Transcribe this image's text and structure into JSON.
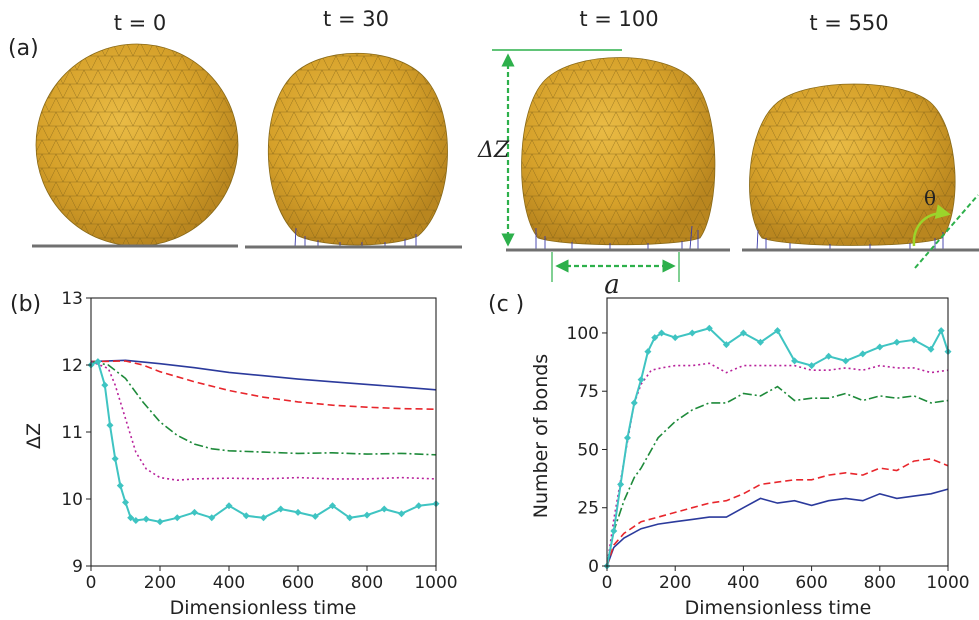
{
  "panel_a": {
    "label": "(a)",
    "frames": [
      {
        "title": "t = 0"
      },
      {
        "title": "t = 30"
      },
      {
        "title": "t = 100"
      },
      {
        "title": "t = 550"
      }
    ],
    "annotations": {
      "height": "ΔZ",
      "contact": "a",
      "angle": "θ"
    },
    "colors": {
      "vesicle": "#d9a52c",
      "bonds": "#3a3aa8",
      "annotation": "#2db04b",
      "angle_arrow": "#9bd52b",
      "substrate": "#707070"
    }
  },
  "chart_data": [
    {
      "type": "line",
      "panel_label": "(b)",
      "xlabel": "Dimensionless time",
      "ylabel": "ΔZ",
      "title": "",
      "xlim": [
        0,
        1000
      ],
      "ylim": [
        9,
        13
      ],
      "xticks": [
        0,
        200,
        400,
        600,
        800,
        1000
      ],
      "yticks": [
        9,
        10,
        11,
        12,
        13
      ],
      "grid": false,
      "legend": "none",
      "series": [
        {
          "color": "#2b3a9c",
          "style": "solid",
          "x": [
            0,
            100,
            200,
            300,
            400,
            500,
            600,
            700,
            800,
            900,
            1000
          ],
          "y": [
            12.05,
            12.07,
            12.02,
            11.96,
            11.89,
            11.84,
            11.79,
            11.75,
            11.71,
            11.67,
            11.63
          ]
        },
        {
          "color": "#e8262c",
          "style": "dashed",
          "x": [
            0,
            100,
            150,
            200,
            300,
            400,
            500,
            600,
            700,
            800,
            900,
            1000
          ],
          "y": [
            12.05,
            12.06,
            12.0,
            11.9,
            11.75,
            11.62,
            11.52,
            11.45,
            11.4,
            11.37,
            11.35,
            11.34
          ]
        },
        {
          "color": "#1e8a3a",
          "style": "dashdot",
          "x": [
            0,
            50,
            100,
            150,
            200,
            250,
            300,
            350,
            400,
            500,
            600,
            700,
            800,
            900,
            1000
          ],
          "y": [
            12.05,
            12.0,
            11.8,
            11.45,
            11.15,
            10.95,
            10.82,
            10.75,
            10.72,
            10.7,
            10.68,
            10.69,
            10.67,
            10.68,
            10.66
          ]
        },
        {
          "color": "#b8219a",
          "style": "dotted",
          "x": [
            0,
            50,
            70,
            100,
            130,
            160,
            200,
            250,
            300,
            400,
            500,
            600,
            700,
            800,
            900,
            1000
          ],
          "y": [
            12.05,
            11.95,
            11.7,
            11.2,
            10.7,
            10.45,
            10.32,
            10.28,
            10.3,
            10.31,
            10.3,
            10.32,
            10.3,
            10.3,
            10.32,
            10.3
          ]
        },
        {
          "color": "#3fc4c2",
          "style": "solid-diamond",
          "x": [
            0,
            20,
            40,
            55,
            70,
            85,
            100,
            115,
            130,
            160,
            200,
            250,
            300,
            350,
            400,
            450,
            500,
            550,
            600,
            650,
            700,
            750,
            800,
            850,
            900,
            950,
            1000
          ],
          "y": [
            12.0,
            12.05,
            11.7,
            11.1,
            10.6,
            10.2,
            9.95,
            9.72,
            9.68,
            9.7,
            9.66,
            9.72,
            9.8,
            9.72,
            9.9,
            9.75,
            9.72,
            9.85,
            9.8,
            9.74,
            9.9,
            9.72,
            9.76,
            9.85,
            9.78,
            9.9,
            9.93
          ]
        }
      ]
    },
    {
      "type": "line",
      "panel_label": "(c )",
      "xlabel": "Dimensionless time",
      "ylabel": "Number of bonds",
      "title": "",
      "xlim": [
        0,
        1000
      ],
      "ylim": [
        0,
        115
      ],
      "xticks": [
        0,
        200,
        400,
        600,
        800,
        1000
      ],
      "yticks": [
        0,
        25,
        50,
        75,
        100
      ],
      "grid": false,
      "legend": "none",
      "series": [
        {
          "color": "#2b3a9c",
          "style": "solid",
          "x": [
            0,
            20,
            50,
            100,
            150,
            200,
            250,
            300,
            350,
            400,
            450,
            500,
            550,
            600,
            650,
            700,
            750,
            800,
            850,
            900,
            950,
            1000
          ],
          "y": [
            0,
            8,
            12,
            16,
            18,
            19,
            20,
            21,
            21,
            25,
            29,
            27,
            28,
            26,
            28,
            29,
            28,
            31,
            29,
            30,
            31,
            33
          ]
        },
        {
          "color": "#e8262c",
          "style": "dashed",
          "x": [
            0,
            20,
            50,
            100,
            150,
            200,
            250,
            300,
            350,
            400,
            450,
            500,
            550,
            600,
            650,
            700,
            750,
            800,
            850,
            900,
            950,
            1000
          ],
          "y": [
            0,
            9,
            14,
            19,
            21,
            23,
            25,
            27,
            28,
            31,
            35,
            36,
            37,
            37,
            39,
            40,
            39,
            42,
            41,
            45,
            46,
            43
          ]
        },
        {
          "color": "#1e8a3a",
          "style": "dashdot",
          "x": [
            0,
            20,
            50,
            80,
            100,
            150,
            200,
            250,
            300,
            350,
            400,
            450,
            500,
            550,
            600,
            650,
            700,
            750,
            800,
            850,
            900,
            950,
            1000
          ],
          "y": [
            0,
            15,
            28,
            38,
            42,
            55,
            62,
            67,
            70,
            70,
            74,
            73,
            77,
            71,
            72,
            72,
            74,
            71,
            73,
            72,
            73,
            70,
            71
          ]
        },
        {
          "color": "#b8219a",
          "style": "dotted",
          "x": [
            0,
            20,
            50,
            80,
            100,
            130,
            160,
            200,
            250,
            300,
            350,
            400,
            450,
            500,
            550,
            600,
            650,
            700,
            750,
            800,
            850,
            900,
            950,
            1000
          ],
          "y": [
            0,
            20,
            45,
            70,
            78,
            84,
            85,
            86,
            86,
            87,
            83,
            86,
            86,
            86,
            86,
            84,
            84,
            85,
            84,
            86,
            85,
            85,
            83,
            84
          ]
        },
        {
          "color": "#3fc4c2",
          "style": "solid-diamond",
          "x": [
            0,
            20,
            40,
            60,
            80,
            100,
            120,
            140,
            160,
            200,
            250,
            300,
            350,
            400,
            450,
            500,
            550,
            600,
            650,
            700,
            750,
            800,
            850,
            900,
            950,
            980,
            1000
          ],
          "y": [
            0,
            15,
            35,
            55,
            70,
            80,
            92,
            98,
            100,
            98,
            100,
            102,
            95,
            100,
            96,
            101,
            88,
            86,
            90,
            88,
            91,
            94,
            96,
            97,
            93,
            101,
            92
          ]
        }
      ]
    }
  ]
}
